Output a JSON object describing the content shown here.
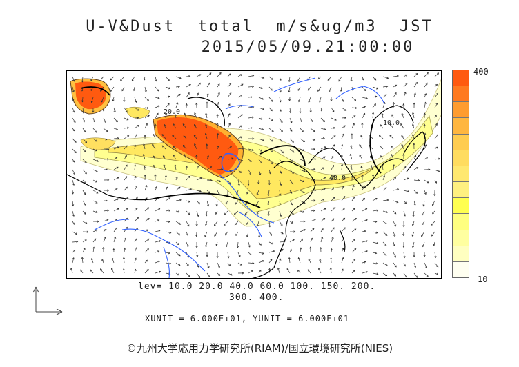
{
  "header": {
    "title": "U-V&Dust  total  m/s&ug/m3  JST",
    "datetime": "2015/05/09.21:00:00"
  },
  "colorbar": {
    "max_label": "400",
    "min_label": "10",
    "colors": [
      "#ff5a10",
      "#ff7a20",
      "#ff9c30",
      "#ffb640",
      "#ffcc50",
      "#ffdc60",
      "#ffe870",
      "#fff080",
      "#ffff50",
      "#ffff80",
      "#ffffa0",
      "#ffffc0",
      "#fffff0"
    ]
  },
  "levels": {
    "line1": "lev= 10.0 20.0 40.0 60.0 100. 150. 200.",
    "line2": "300. 400."
  },
  "units": {
    "text": "XUNIT = 6.000E+01, YUNIT = 6.000E+01"
  },
  "map": {
    "contour_labels": [
      "10.0",
      "40.0",
      "20.0"
    ]
  },
  "footer": {
    "copyright": "©九州大学応用力学研究所(RIAM)/国立環境研究所(NIES)"
  }
}
